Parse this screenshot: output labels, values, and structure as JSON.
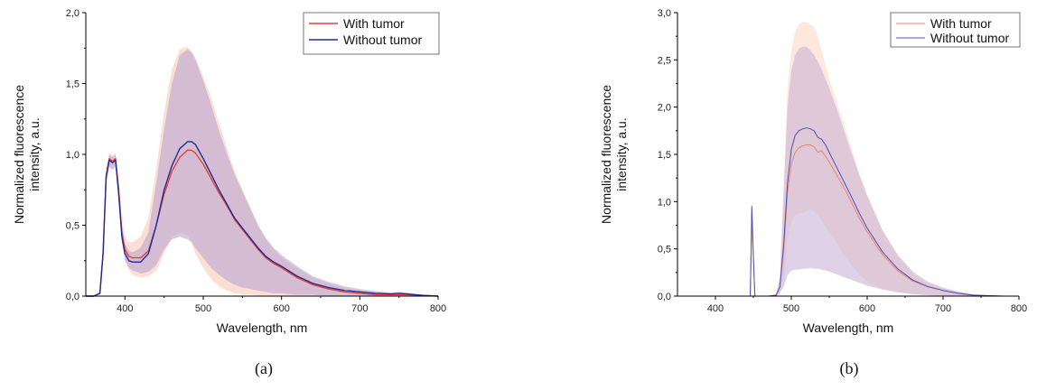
{
  "chart_data": [
    {
      "type": "line",
      "panel_label": "(a)",
      "xlabel": "Wavelength, nm",
      "ylabel": [
        "Normalized fluorescence",
        "intensity, a.u."
      ],
      "xlim": [
        350,
        800
      ],
      "ylim": [
        0,
        2.0
      ],
      "xticks": [
        400,
        500,
        600,
        700,
        800
      ],
      "yticks": [
        0.0,
        0.5,
        1.0,
        1.5,
        2.0
      ],
      "ytick_labels": [
        "0,0",
        "0,5",
        "1,0",
        "1,5",
        "2,0"
      ],
      "legend_position": "top-right",
      "series": [
        {
          "name": "With tumor",
          "color": "#e0443a",
          "band_color": "#fbd3c4",
          "x": [
            350,
            360,
            368,
            372,
            376,
            380,
            384,
            388,
            392,
            396,
            400,
            405,
            410,
            420,
            430,
            440,
            450,
            460,
            470,
            480,
            485,
            490,
            500,
            510,
            520,
            530,
            540,
            550,
            560,
            570,
            580,
            590,
            600,
            620,
            640,
            660,
            680,
            700,
            720,
            740,
            750,
            760,
            780,
            800
          ],
          "y": [
            0,
            0,
            0.02,
            0.3,
            0.85,
            0.97,
            0.95,
            0.97,
            0.75,
            0.45,
            0.33,
            0.28,
            0.27,
            0.27,
            0.32,
            0.5,
            0.72,
            0.88,
            0.98,
            1.03,
            1.03,
            1.01,
            0.93,
            0.83,
            0.73,
            0.64,
            0.54,
            0.47,
            0.4,
            0.33,
            0.27,
            0.23,
            0.2,
            0.13,
            0.08,
            0.05,
            0.03,
            0.02,
            0.01,
            0.01,
            0.01,
            0.01,
            0.005,
            0
          ],
          "lower": [
            0,
            0,
            0.01,
            0.27,
            0.8,
            0.92,
            0.9,
            0.92,
            0.7,
            0.4,
            0.25,
            0.18,
            0.15,
            0.13,
            0.14,
            0.18,
            0.3,
            0.42,
            0.45,
            0.43,
            0.38,
            0.3,
            0.2,
            0.12,
            0.07,
            0.04,
            0.02,
            0.01,
            0.01,
            0.005,
            0,
            0,
            0,
            0,
            0,
            0,
            0,
            0,
            0,
            0,
            0,
            0,
            0,
            0
          ],
          "upper": [
            0,
            0,
            0.03,
            0.33,
            0.9,
            1.01,
            0.99,
            1.01,
            0.82,
            0.55,
            0.42,
            0.38,
            0.38,
            0.42,
            0.55,
            0.9,
            1.3,
            1.6,
            1.74,
            1.76,
            1.73,
            1.68,
            1.55,
            1.4,
            1.22,
            1.05,
            0.88,
            0.75,
            0.63,
            0.5,
            0.4,
            0.33,
            0.27,
            0.2,
            0.13,
            0.09,
            0.06,
            0.04,
            0.03,
            0.02,
            0.02,
            0.02,
            0.01,
            0
          ]
        },
        {
          "name": "Without tumor",
          "color": "#232b96",
          "band_color": "#b9a6d2",
          "x": [
            350,
            360,
            368,
            372,
            376,
            380,
            384,
            388,
            392,
            396,
            400,
            405,
            410,
            420,
            430,
            440,
            450,
            460,
            470,
            480,
            485,
            490,
            500,
            510,
            520,
            530,
            540,
            550,
            560,
            570,
            580,
            590,
            600,
            620,
            640,
            660,
            680,
            700,
            720,
            740,
            750,
            760,
            780,
            800
          ],
          "y": [
            0,
            0,
            0.02,
            0.3,
            0.84,
            0.96,
            0.94,
            0.96,
            0.72,
            0.42,
            0.3,
            0.25,
            0.24,
            0.24,
            0.3,
            0.5,
            0.75,
            0.92,
            1.04,
            1.09,
            1.09,
            1.07,
            0.97,
            0.86,
            0.75,
            0.65,
            0.55,
            0.48,
            0.41,
            0.34,
            0.28,
            0.24,
            0.21,
            0.14,
            0.09,
            0.06,
            0.04,
            0.03,
            0.02,
            0.015,
            0.02,
            0.015,
            0.005,
            0
          ],
          "lower": [
            0,
            0,
            0.01,
            0.27,
            0.79,
            0.91,
            0.89,
            0.91,
            0.68,
            0.38,
            0.26,
            0.2,
            0.18,
            0.16,
            0.17,
            0.22,
            0.33,
            0.4,
            0.42,
            0.4,
            0.38,
            0.34,
            0.27,
            0.2,
            0.15,
            0.11,
            0.08,
            0.06,
            0.05,
            0.04,
            0.03,
            0.02,
            0.02,
            0.01,
            0.01,
            0,
            0,
            0,
            0,
            0,
            0,
            0,
            0,
            0
          ],
          "upper": [
            0,
            0,
            0.03,
            0.33,
            0.89,
            1.0,
            0.98,
            1.0,
            0.78,
            0.5,
            0.37,
            0.32,
            0.31,
            0.34,
            0.45,
            0.8,
            1.18,
            1.5,
            1.7,
            1.74,
            1.72,
            1.67,
            1.52,
            1.35,
            1.17,
            1.01,
            0.86,
            0.74,
            0.62,
            0.5,
            0.41,
            0.34,
            0.29,
            0.21,
            0.14,
            0.1,
            0.07,
            0.05,
            0.035,
            0.025,
            0.03,
            0.025,
            0.01,
            0
          ]
        }
      ]
    },
    {
      "type": "line",
      "panel_label": "(b)",
      "xlabel": "Wavelength, nm",
      "ylabel": [
        "Normalized fluorescence",
        "intensity, a.u."
      ],
      "xlim": [
        350,
        800
      ],
      "ylim": [
        0,
        3.0
      ],
      "xticks": [
        400,
        500,
        600,
        700,
        800
      ],
      "yticks": [
        0.0,
        0.5,
        1.0,
        1.5,
        2.0,
        2.5,
        3.0
      ],
      "ytick_labels": [
        "0,0",
        "0,5",
        "1,0",
        "1,5",
        "2,0",
        "2,5",
        "3,0"
      ],
      "legend_position": "top-right",
      "series": [
        {
          "name": "With tumor",
          "color": "#f08070",
          "band_color": "#fde0d2",
          "x": [
            350,
            440,
            446,
            448,
            450,
            452,
            456,
            470,
            480,
            485,
            490,
            495,
            500,
            505,
            510,
            515,
            520,
            525,
            530,
            535,
            540,
            545,
            550,
            560,
            570,
            580,
            590,
            600,
            620,
            640,
            660,
            680,
            700,
            720,
            740,
            760,
            780,
            800
          ],
          "y": [
            0,
            0,
            0,
            0.9,
            0.4,
            0,
            0,
            0,
            0.01,
            0.1,
            0.5,
            1.1,
            1.4,
            1.52,
            1.57,
            1.59,
            1.6,
            1.6,
            1.58,
            1.52,
            1.54,
            1.48,
            1.42,
            1.28,
            1.14,
            0.98,
            0.82,
            0.68,
            0.44,
            0.27,
            0.16,
            0.1,
            0.06,
            0.03,
            0.01,
            0.005,
            0,
            0
          ],
          "lower": [
            0,
            0,
            0,
            0.8,
            0.35,
            0,
            0,
            0,
            0,
            0.03,
            0.15,
            0.6,
            0.8,
            0.86,
            0.88,
            0.88,
            0.9,
            0.92,
            0.9,
            0.85,
            0.8,
            0.74,
            0.68,
            0.55,
            0.43,
            0.32,
            0.23,
            0.15,
            0.08,
            0.04,
            0.02,
            0.01,
            0,
            0,
            0,
            0,
            0,
            0
          ],
          "upper": [
            0,
            0,
            0,
            1.0,
            0.45,
            0,
            0,
            0,
            0.02,
            0.2,
            1.2,
            2.2,
            2.6,
            2.8,
            2.88,
            2.9,
            2.9,
            2.88,
            2.85,
            2.75,
            2.6,
            2.45,
            2.3,
            2.05,
            1.8,
            1.55,
            1.3,
            1.08,
            0.7,
            0.42,
            0.24,
            0.14,
            0.08,
            0.04,
            0.02,
            0.01,
            0.005,
            0
          ]
        },
        {
          "name": "Without tumor",
          "color": "#4a52b5",
          "band_color": "#c9b3d6",
          "x": [
            350,
            440,
            446,
            448,
            450,
            452,
            456,
            470,
            480,
            485,
            490,
            495,
            500,
            505,
            510,
            515,
            520,
            525,
            530,
            535,
            540,
            545,
            550,
            560,
            570,
            580,
            590,
            600,
            620,
            640,
            660,
            680,
            700,
            720,
            740,
            760,
            780,
            800
          ],
          "y": [
            0,
            0,
            0,
            0.95,
            0.42,
            0,
            0,
            0,
            0.01,
            0.1,
            0.55,
            1.2,
            1.55,
            1.7,
            1.75,
            1.77,
            1.78,
            1.77,
            1.75,
            1.68,
            1.66,
            1.6,
            1.52,
            1.36,
            1.2,
            1.04,
            0.87,
            0.72,
            0.47,
            0.29,
            0.17,
            0.1,
            0.06,
            0.03,
            0.01,
            0.005,
            0,
            0
          ],
          "lower": [
            0,
            0,
            0,
            0.85,
            0.38,
            0,
            0,
            0,
            0,
            0.03,
            0.1,
            0.22,
            0.27,
            0.28,
            0.28,
            0.29,
            0.29,
            0.3,
            0.29,
            0.29,
            0.28,
            0.27,
            0.26,
            0.23,
            0.2,
            0.17,
            0.14,
            0.11,
            0.07,
            0.04,
            0.02,
            0.01,
            0,
            0,
            0,
            0,
            0,
            0
          ],
          "upper": [
            0,
            0,
            0,
            1.02,
            0.48,
            0,
            0,
            0,
            0.02,
            0.2,
            1.1,
            2.0,
            2.38,
            2.55,
            2.62,
            2.64,
            2.64,
            2.6,
            2.55,
            2.48,
            2.4,
            2.3,
            2.2,
            1.98,
            1.74,
            1.5,
            1.27,
            1.06,
            0.7,
            0.44,
            0.26,
            0.15,
            0.09,
            0.05,
            0.02,
            0.01,
            0.005,
            0
          ]
        }
      ]
    }
  ]
}
